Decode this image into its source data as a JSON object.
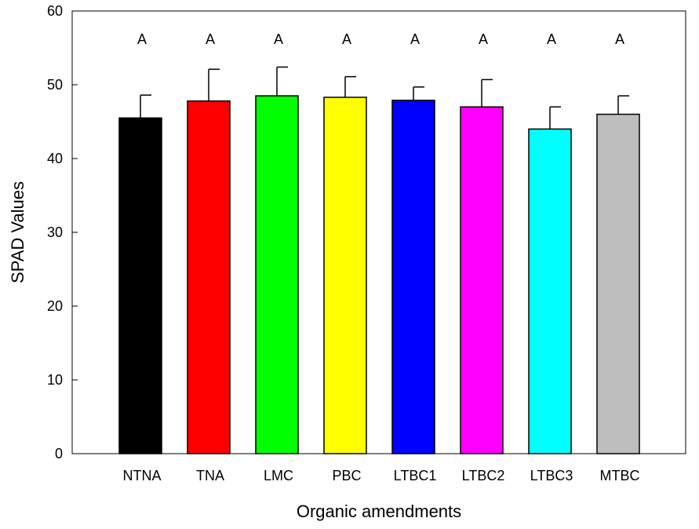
{
  "chart_data": {
    "type": "bar",
    "title": "",
    "xlabel": "Organic amendments",
    "ylabel": "SPAD Values",
    "ylim": [
      0,
      60
    ],
    "yticks": [
      0,
      10,
      20,
      30,
      40,
      50,
      60
    ],
    "grid": false,
    "legend": "none",
    "categories": [
      "NTNA",
      "TNA",
      "LMC",
      "PBC",
      "LTBC1",
      "LTBC2",
      "LTBC3",
      "MTBC"
    ],
    "values": [
      45.5,
      47.8,
      48.5,
      48.3,
      47.9,
      47.0,
      44.0,
      46.0
    ],
    "errors": [
      3.1,
      4.3,
      3.9,
      2.8,
      1.8,
      3.7,
      3.0,
      2.5
    ],
    "significance_letters": [
      "A",
      "A",
      "A",
      "A",
      "A",
      "A",
      "A",
      "A"
    ],
    "colors": [
      "#000000",
      "#ff0000",
      "#00ff00",
      "#ffff00",
      "#0000ff",
      "#ff00ff",
      "#00ffff",
      "#bebebe"
    ]
  }
}
